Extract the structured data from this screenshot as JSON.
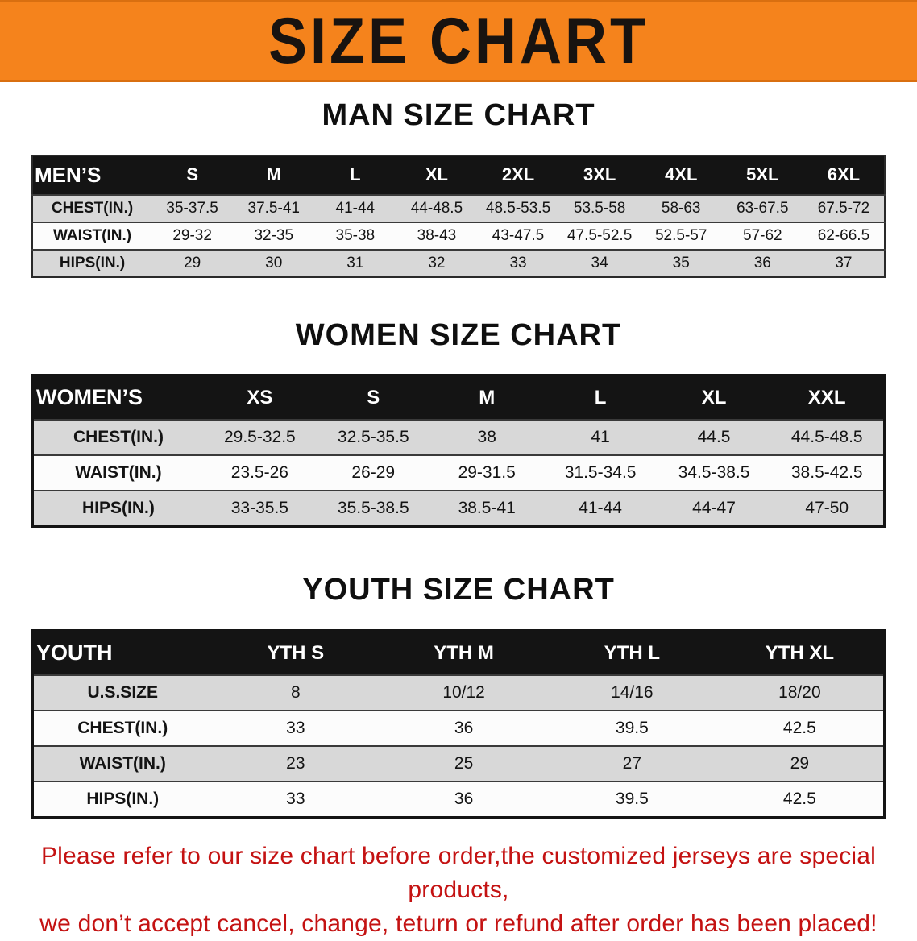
{
  "banner": {
    "title": "SIZE CHART",
    "bg_color": "#f5831c",
    "text_color": "#181310"
  },
  "sections": [
    {
      "heading": "MAN SIZE CHART",
      "table": {
        "header": [
          "MEN’S",
          "S",
          "M",
          "L",
          "XL",
          "2XL",
          "3XL",
          "4XL",
          "5XL",
          "6XL"
        ],
        "rows": [
          [
            "CHEST(IN.)",
            "35-37.5",
            "37.5-41",
            "41-44",
            "44-48.5",
            "48.5-53.5",
            "53.5-58",
            "58-63",
            "63-67.5",
            "67.5-72"
          ],
          [
            "WAIST(IN.)",
            "29-32",
            "32-35",
            "35-38",
            "38-43",
            "43-47.5",
            "47.5-52.5",
            "52.5-57",
            "57-62",
            "62-66.5"
          ],
          [
            "HIPS(IN.)",
            "29",
            "30",
            "31",
            "32",
            "33",
            "34",
            "35",
            "36",
            "37"
          ]
        ]
      }
    },
    {
      "heading": "WOMEN SIZE CHART",
      "table": {
        "header": [
          "WOMEN’S",
          "XS",
          "S",
          "M",
          "L",
          "XL",
          "XXL"
        ],
        "rows": [
          [
            "CHEST(IN.)",
            "29.5-32.5",
            "32.5-35.5",
            "38",
            "41",
            "44.5",
            "44.5-48.5"
          ],
          [
            "WAIST(IN.)",
            "23.5-26",
            "26-29",
            "29-31.5",
            "31.5-34.5",
            "34.5-38.5",
            "38.5-42.5"
          ],
          [
            "HIPS(IN.)",
            "33-35.5",
            "35.5-38.5",
            "38.5-41",
            "41-44",
            "44-47",
            "47-50"
          ]
        ]
      }
    },
    {
      "heading": "YOUTH SIZE CHART",
      "table": {
        "header": [
          "YOUTH",
          "YTH S",
          "YTH M",
          "YTH L",
          "YTH XL"
        ],
        "rows": [
          [
            "U.S.SIZE",
            "8",
            "10/12",
            "14/16",
            "18/20"
          ],
          [
            "CHEST(IN.)",
            "33",
            "36",
            "39.5",
            "42.5"
          ],
          [
            "WAIST(IN.)",
            "23",
            "25",
            "27",
            "29"
          ],
          [
            "HIPS(IN.)",
            "33",
            "36",
            "39.5",
            "42.5"
          ]
        ]
      }
    }
  ],
  "footer": {
    "line1": "Please refer to our size chart before order,the customized jerseys are special products,",
    "line2": "we don’t accept cancel, change, teturn or refund after order has been placed!"
  },
  "colors": {
    "row_gray": "#d8d8d8",
    "header_black": "#141414",
    "disclaimer_red": "#c41212"
  }
}
